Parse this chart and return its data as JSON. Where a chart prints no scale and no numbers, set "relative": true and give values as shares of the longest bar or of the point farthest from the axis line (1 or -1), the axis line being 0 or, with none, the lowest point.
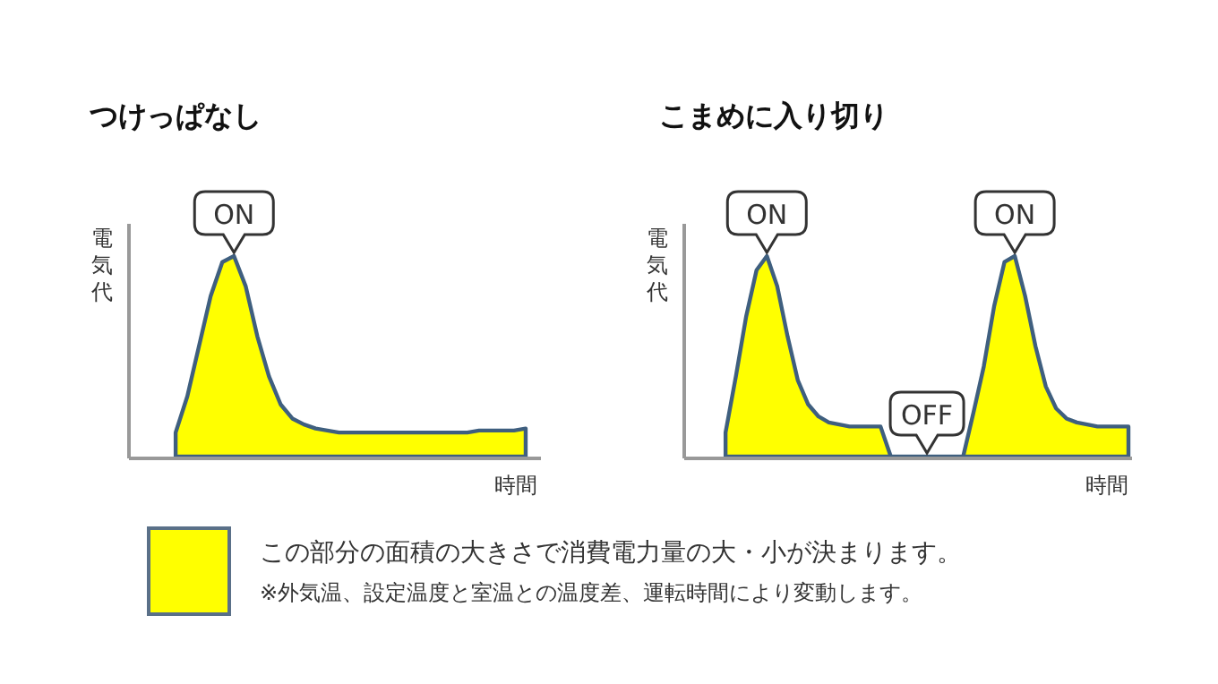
{
  "chart_data": [
    {
      "type": "area",
      "title": "つけっぱなし",
      "ylabel": "電気代",
      "xlabel": "時間",
      "relative": true,
      "legend": false,
      "categories": [
        null,
        null,
        null,
        null,
        null,
        null,
        null,
        null,
        null,
        null,
        null,
        null,
        null,
        null,
        null,
        null,
        null,
        null,
        null,
        null,
        null,
        null,
        null,
        null,
        null,
        null,
        null,
        null,
        null,
        null,
        null,
        null,
        null,
        null,
        null,
        null
      ],
      "series": [
        {
          "color": "#ffff00",
          "values": [
            null,
            null,
            null,
            null,
            0.12,
            0.3,
            0.55,
            0.8,
            0.97,
            1.0,
            0.85,
            0.6,
            0.4,
            0.26,
            0.19,
            0.16,
            0.14,
            0.13,
            0.12,
            0.12,
            0.12,
            0.12,
            0.12,
            0.12,
            0.12,
            0.12,
            0.12,
            0.12,
            0.12,
            0.12,
            0.13,
            0.13,
            0.13,
            0.13,
            0.14,
            null
          ]
        }
      ],
      "annotations": [
        {
          "text": "ON",
          "y": 1.0
        }
      ]
    },
    {
      "type": "area",
      "title": "こまめに入り切り",
      "ylabel": "電気代",
      "xlabel": "時間",
      "relative": true,
      "legend": "bottom",
      "categories": [
        null,
        null,
        null,
        null,
        null,
        null,
        null,
        null,
        null,
        null,
        null,
        null,
        null,
        null,
        null,
        null,
        null,
        null,
        null,
        null,
        null,
        null,
        null,
        null,
        null,
        null,
        null,
        null,
        null,
        null,
        null,
        null,
        null,
        null,
        null,
        null,
        null,
        null,
        null,
        null,
        null,
        null,
        null,
        null
      ],
      "series": [
        {
          "name": "この部分の面積の大きさで消費電力量の大・小が決まります。",
          "color": "#ffff00",
          "values": [
            null,
            null,
            null,
            null,
            0.12,
            0.4,
            0.7,
            0.93,
            1.0,
            0.85,
            0.6,
            0.38,
            0.26,
            0.2,
            0.17,
            0.16,
            0.15,
            0.15,
            0.15,
            0.15,
            0,
            0,
            0,
            0,
            0,
            0,
            0,
            0,
            0.22,
            0.45,
            0.75,
            0.97,
            1.0,
            0.8,
            0.55,
            0.35,
            0.24,
            0.19,
            0.17,
            0.16,
            0.15,
            0.15,
            0.15,
            0.15
          ]
        }
      ],
      "annotations": [
        {
          "text": "ON",
          "y": 1.0
        },
        {
          "text": "OFF",
          "y": 0
        },
        {
          "text": "ON",
          "y": 1.0
        },
        "※外気温、設定温度と室温との温度差、運転時間により変動します。"
      ]
    }
  ]
}
